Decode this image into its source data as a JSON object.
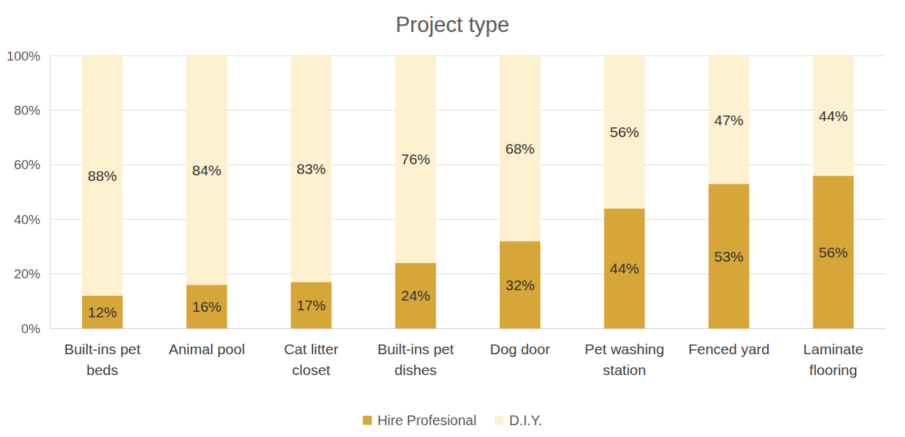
{
  "chart_data": {
    "type": "bar",
    "title": "Project type",
    "categories": [
      "Built-ins pet beds",
      "Animal pool",
      "Cat litter closet",
      "Built-ins pet dishes",
      "Dog door",
      "Pet washing station",
      "Fenced yard",
      "Laminate flooring"
    ],
    "series": [
      {
        "name": "Hire Profesional",
        "color": "#d6a638",
        "values": [
          12,
          16,
          17,
          24,
          32,
          44,
          53,
          56
        ],
        "value_labels": [
          "12%",
          "16%",
          "17%",
          "24%",
          "32%",
          "44%",
          "53%",
          "56%"
        ]
      },
      {
        "name": "D.I.Y.",
        "color": "#fdf1cf",
        "values": [
          88,
          84,
          83,
          76,
          68,
          56,
          47,
          44
        ],
        "value_labels": [
          "88%",
          "84%",
          "83%",
          "76%",
          "68%",
          "56%",
          "47%",
          "44%"
        ]
      }
    ],
    "ylim": [
      0,
      100
    ],
    "yticks": [
      {
        "value": 0,
        "label": "0%"
      },
      {
        "value": 20,
        "label": "20%"
      },
      {
        "value": 40,
        "label": "40%"
      },
      {
        "value": 60,
        "label": "60%"
      },
      {
        "value": 80,
        "label": "80%"
      },
      {
        "value": 100,
        "label": "100%"
      }
    ],
    "grid": true,
    "stacked": true,
    "data_labels": true,
    "legend": "bottom"
  }
}
